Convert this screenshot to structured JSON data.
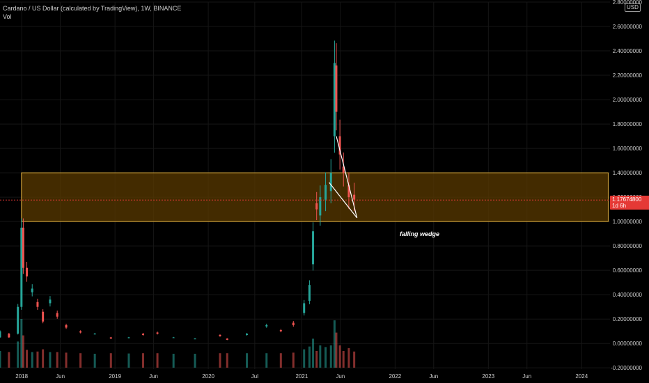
{
  "legend": {
    "title": "Cardano / US Dollar (calculated by TradingView), 1W, BINANCE",
    "sub": "Vol"
  },
  "unit": "USD",
  "price_label": {
    "value": "1.17674800",
    "countdown": "1d 6h"
  },
  "annotation": "falling wedge",
  "colors": {
    "background": "#000000",
    "up": "#26a69a",
    "down": "#ef5350",
    "zone_fill": "#5a3a00",
    "zone_border": "#e0b040",
    "price_line": "#e53935",
    "wedge": "#ffffff",
    "axis_text": "#cfcfcf"
  },
  "chart_data": {
    "type": "candlestick",
    "interval": "1W",
    "y_axis": {
      "ticks": [
        2.8,
        2.6,
        2.4,
        2.2,
        2.0,
        1.8,
        1.6,
        1.4,
        1.2,
        1.0,
        0.8,
        0.6,
        0.4,
        0.2,
        0.0,
        -0.2
      ],
      "tick_labels": [
        "2.80000000",
        "2.60000000",
        "2.40000000",
        "2.20000000",
        "2.00000000",
        "1.80000000",
        "1.60000000",
        "1.40000000",
        "1.20000000",
        "1.00000000",
        "0.80000000",
        "0.60000000",
        "0.40000000",
        "0.20000000",
        "0.00000000",
        "-0.20000000"
      ],
      "range": [
        -0.21,
        2.8
      ]
    },
    "x_axis": {
      "labels": [
        "2018",
        "Jun",
        "2019",
        "Jun",
        "2020",
        "Jul",
        "2021",
        "Jun",
        "2022",
        "Jun",
        "2023",
        "Jun",
        "2024"
      ],
      "label_dates": [
        "2018-01-01",
        "2018-06-01",
        "2019-01-01",
        "2019-06-01",
        "2020-01-01",
        "2020-07-01",
        "2021-01-01",
        "2021-06-01",
        "2022-01-01",
        "2022-06-01",
        "2023-01-01",
        "2023-06-01",
        "2024-01-01"
      ],
      "range": [
        "2017-10-08",
        "2024-04-21"
      ]
    },
    "zone": {
      "x_start": "2017-12-31",
      "x_end": "2024-04-14",
      "low": 1.0,
      "high": 1.4
    },
    "current_price": 1.176748,
    "wedge": {
      "upper": [
        [
          "2021-05-16",
          1.7
        ],
        [
          "2021-08-05",
          1.03
        ]
      ],
      "lower": [
        [
          "2021-04-18",
          1.32
        ],
        [
          "2021-08-05",
          1.03
        ]
      ]
    },
    "annotation": {
      "text": "falling wedge",
      "x": "2021-08-05",
      "y": 0.9
    },
    "series": [
      {
        "points": [
          [
            "2017-10-08",
            0.05,
            0.1
          ],
          [
            "2017-11-12",
            0.08,
            0.05
          ],
          [
            "2017-12-17",
            0.08,
            0.3
          ],
          [
            "2017-12-31",
            0.3,
            0.95
          ],
          [
            "2018-01-07",
            0.95,
            0.62
          ],
          [
            "2018-01-21",
            0.62,
            0.55
          ],
          [
            "2018-02-11",
            0.42,
            0.45
          ],
          [
            "2018-03-04",
            0.34,
            0.3
          ],
          [
            "2018-03-25",
            0.26,
            0.18
          ],
          [
            "2018-04-22",
            0.33,
            0.36
          ],
          [
            "2018-05-20",
            0.25,
            0.22
          ],
          [
            "2018-06-24",
            0.15,
            0.13
          ],
          [
            "2018-08-19",
            0.1,
            0.09
          ],
          [
            "2018-10-14",
            0.08,
            0.08
          ],
          [
            "2018-12-16",
            0.05,
            0.04
          ],
          [
            "2019-02-24",
            0.045,
            0.05
          ],
          [
            "2019-04-21",
            0.08,
            0.07
          ],
          [
            "2019-06-16",
            0.09,
            0.08
          ],
          [
            "2019-08-18",
            0.05,
            0.05
          ],
          [
            "2019-11-10",
            0.04,
            0.04
          ],
          [
            "2020-02-16",
            0.07,
            0.06
          ],
          [
            "2020-03-15",
            0.04,
            0.03
          ],
          [
            "2020-05-31",
            0.07,
            0.08
          ],
          [
            "2020-08-16",
            0.14,
            0.15
          ],
          [
            "2020-10-11",
            0.11,
            0.1
          ],
          [
            "2020-11-29",
            0.17,
            0.15
          ],
          [
            "2021-01-10",
            0.25,
            0.33
          ],
          [
            "2021-01-31",
            0.35,
            0.48
          ],
          [
            "2021-02-14",
            0.65,
            0.92
          ],
          [
            "2021-02-28",
            1.15,
            1.1
          ],
          [
            "2021-03-14",
            1.05,
            1.2
          ],
          [
            "2021-04-04",
            1.18,
            1.3
          ],
          [
            "2021-04-25",
            1.25,
            1.4
          ],
          [
            "2021-05-09",
            1.7,
            2.3
          ],
          [
            "2021-05-16",
            2.28,
            1.9
          ],
          [
            "2021-05-30",
            1.7,
            1.55
          ],
          [
            "2021-06-13",
            1.45,
            1.4
          ],
          [
            "2021-07-04",
            1.3,
            1.2
          ],
          [
            "2021-07-25",
            1.22,
            1.18
          ]
        ]
      }
    ]
  }
}
